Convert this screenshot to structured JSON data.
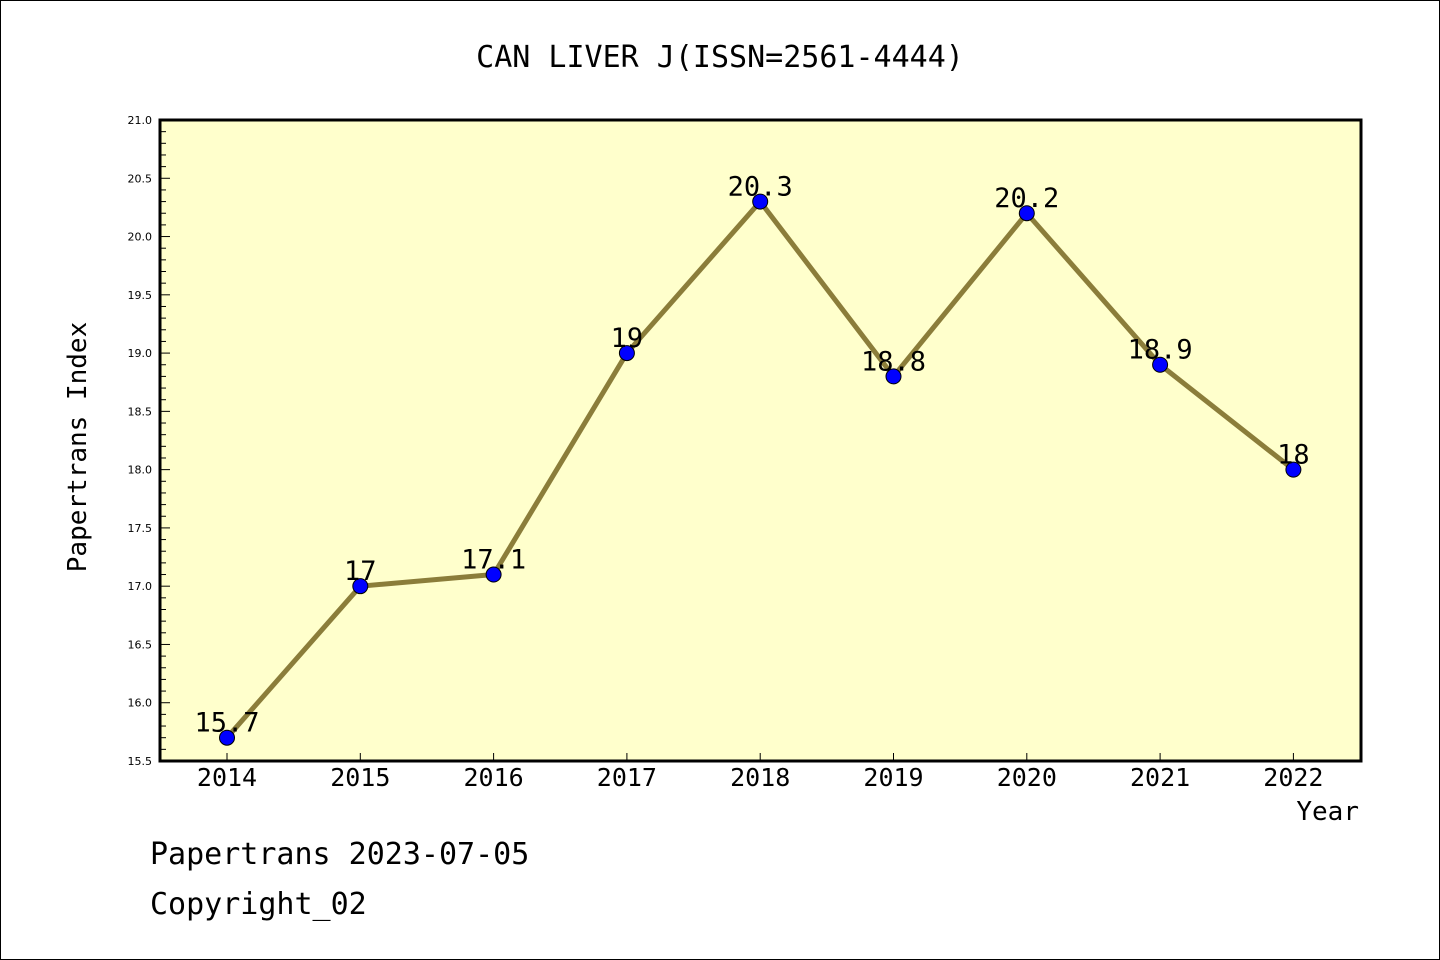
{
  "chart_data": {
    "type": "line",
    "title": "CAN LIVER J(ISSN=2561-4444)",
    "xlabel": "Year",
    "ylabel": "Papertrans Index",
    "categories": [
      "2014",
      "2015",
      "2016",
      "2017",
      "2018",
      "2019",
      "2020",
      "2021",
      "2022"
    ],
    "values": [
      15.7,
      17,
      17.1,
      19,
      20.3,
      18.8,
      20.2,
      18.9,
      18
    ],
    "data_labels": [
      "15.7",
      "17",
      "17.1",
      "19",
      "20.3",
      "18.8",
      "20.2",
      "18.9",
      "18"
    ],
    "ylim": [
      15.5,
      21.0
    ],
    "yticks": [
      "15.5",
      "16.0",
      "16.5",
      "17.0",
      "17.5",
      "18.0",
      "18.5",
      "19.0",
      "19.5",
      "20.0",
      "20.5",
      "21.0"
    ],
    "grid": false,
    "legend": "none",
    "colors": {
      "plot_background": "#ffffcc",
      "line": "#8b7d3a",
      "marker": "#0000ff"
    }
  },
  "footer": {
    "line1": "Papertrans 2023-07-05",
    "line2": "Copyright_02"
  }
}
